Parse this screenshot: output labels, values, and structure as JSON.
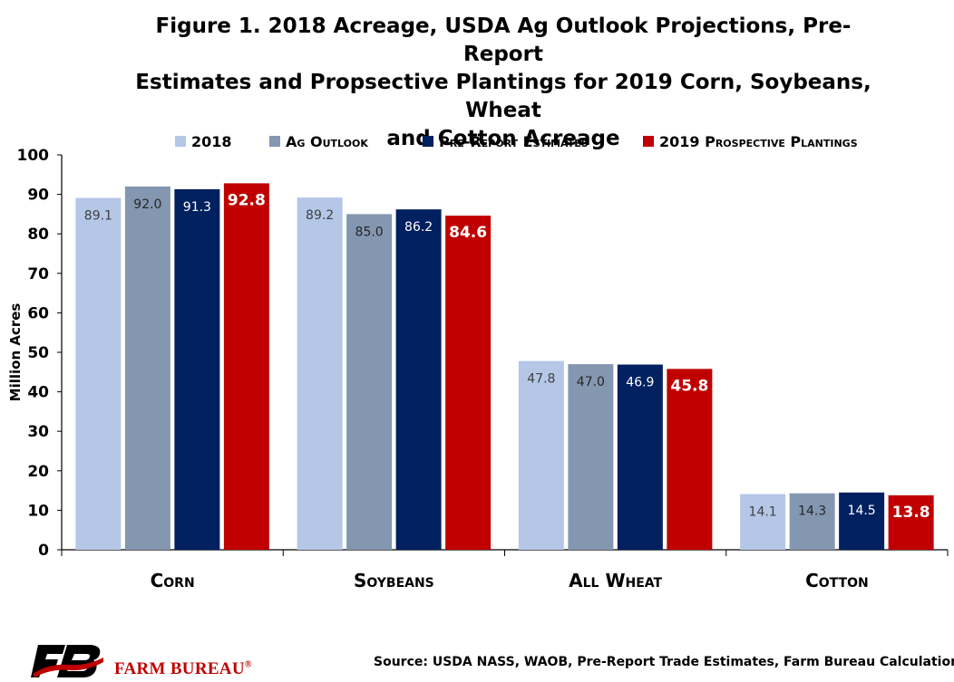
{
  "chart_data": {
    "type": "bar",
    "title_lines": [
      "Figure 1. 2018 Acreage, USDA Ag Outlook Projections, Pre-Report",
      "Estimates and Propsective Plantings for 2019 Corn, Soybeans, Wheat",
      "and Cotton Acreage"
    ],
    "ylabel": "Million Acres",
    "ylim": [
      0,
      100
    ],
    "yticks": [
      0,
      10,
      20,
      30,
      40,
      50,
      60,
      70,
      80,
      90,
      100
    ],
    "categories": [
      "Corn",
      "Soybeans",
      "All Wheat",
      "Cotton"
    ],
    "series": [
      {
        "name": "2018",
        "color": "#b4c7e7",
        "values": [
          89.1,
          89.2,
          47.8,
          14.1
        ],
        "labels": [
          "89.1",
          "89.2",
          "47.8",
          "14.1"
        ],
        "label_color": "#404040",
        "label_bold": false
      },
      {
        "name": "Ag Outlook",
        "color": "#8497b0",
        "values": [
          92.0,
          85.0,
          47.0,
          14.3
        ],
        "labels": [
          "92.0",
          "85.0",
          "47.0",
          "14.3"
        ],
        "label_color": "#262626",
        "label_bold": false
      },
      {
        "name": "Pre-Report Estimates",
        "color": "#002060",
        "values": [
          91.3,
          86.2,
          46.9,
          14.5
        ],
        "labels": [
          "91.3",
          "86.2",
          "46.9",
          "14.5"
        ],
        "label_color": "#ffffff",
        "label_bold": false
      },
      {
        "name": "2019 Prospective Plantings",
        "color": "#c00000",
        "values": [
          92.8,
          84.6,
          45.8,
          13.8
        ],
        "labels": [
          "92.8",
          "84.6",
          "45.8",
          "13.8"
        ],
        "label_color": "#ffffff",
        "label_bold": true
      }
    ],
    "legend_position": "top",
    "grid": false
  },
  "footer": {
    "source": "Source: USDA NASS, WAOB, Pre-Report Trade Estimates, Farm Bureau Calculations",
    "logo_text": "FARM BUREAU",
    "logo_mark": "FB",
    "logo_registered": "®"
  }
}
